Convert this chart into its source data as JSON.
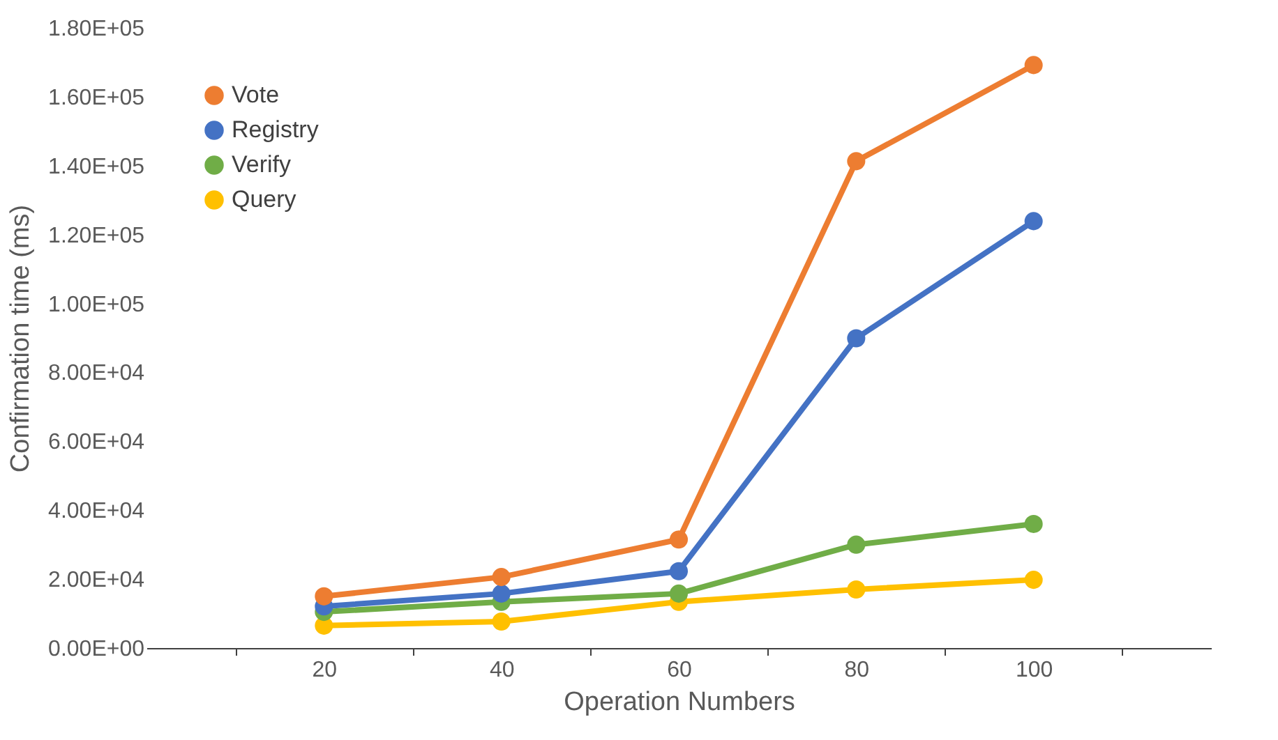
{
  "chart_data": {
    "type": "line",
    "xlabel": "Operation Numbers",
    "ylabel": "Confirmation time (ms)",
    "categories": [
      "20",
      "40",
      "60",
      "80",
      "100"
    ],
    "series": [
      {
        "name": "Vote",
        "color": "#ed7d31",
        "values": [
          15000,
          20600,
          31500,
          141300,
          169200
        ]
      },
      {
        "name": "Registry",
        "color": "#4472c4",
        "values": [
          12100,
          15800,
          22300,
          89900,
          123900
        ]
      },
      {
        "name": "Verify",
        "color": "#70ad47",
        "values": [
          10500,
          13400,
          15800,
          30000,
          36000
        ]
      },
      {
        "name": "Query",
        "color": "#ffc000",
        "values": [
          6500,
          7700,
          13400,
          17000,
          19800
        ]
      }
    ],
    "ylim": [
      0,
      180000
    ],
    "yticks": [
      {
        "value": 0,
        "label": "0.00E+00"
      },
      {
        "value": 20000,
        "label": "2.00E+04"
      },
      {
        "value": 40000,
        "label": "4.00E+04"
      },
      {
        "value": 60000,
        "label": "6.00E+04"
      },
      {
        "value": 80000,
        "label": "8.00E+04"
      },
      {
        "value": 100000,
        "label": "1.00E+05"
      },
      {
        "value": 120000,
        "label": "1.20E+05"
      },
      {
        "value": 140000,
        "label": "1.40E+05"
      },
      {
        "value": 160000,
        "label": "1.60E+05"
      },
      {
        "value": 180000,
        "label": "1.80E+05"
      }
    ],
    "legend": "top left",
    "marker": "circle",
    "line_style": "solid",
    "grid": false
  }
}
